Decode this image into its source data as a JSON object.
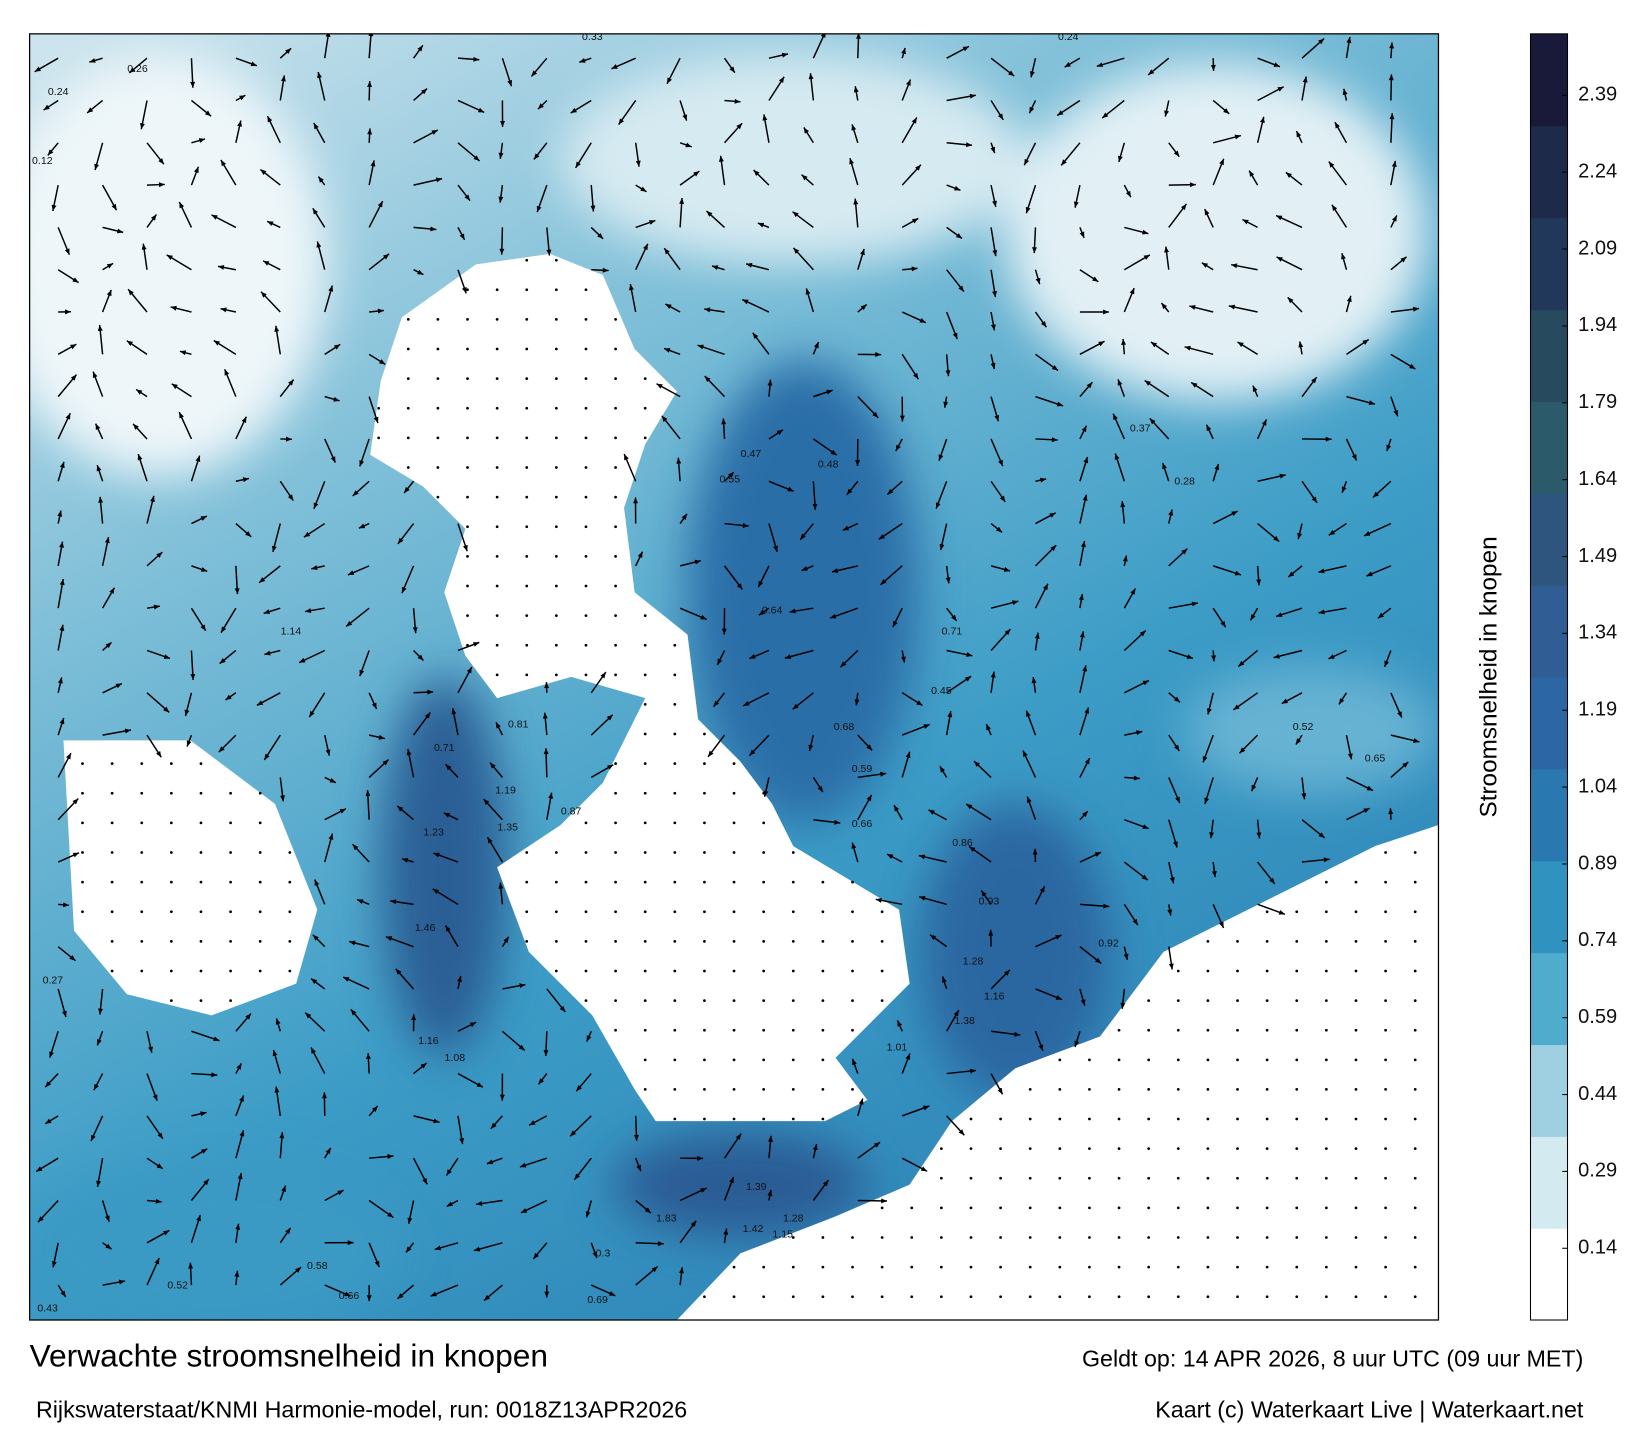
{
  "map": {
    "title": "Verwachte stroomsnelheid in knopen",
    "subtitle": "Rijkswaterstaat/KNMI Harmonie-model, run: 0018Z13APR2026",
    "valid_time": "Geldt op: 14 APR 2026, 8 uur UTC (09 uur MET)",
    "credit": "Kaart (c) Waterkaart Live | Waterkaart.net",
    "colorbar": {
      "label": "Stroomsnelheid in knopen",
      "lim": [
        0,
        2.51
      ],
      "ticks": [
        0.14,
        0.29,
        0.44,
        0.59,
        0.74,
        0.89,
        1.04,
        1.19,
        1.34,
        1.49,
        1.64,
        1.79,
        1.94,
        2.09,
        2.24,
        2.39
      ],
      "colors": [
        "#ffffff",
        "#d4eaf1",
        "#9ed0e2",
        "#4faccd",
        "#2f92bf",
        "#2a78b0",
        "#2c67a3",
        "#2f5d94",
        "#2e557e",
        "#2b5a6a",
        "#274a5e",
        "#22385a",
        "#1d2a4a",
        "#19193a"
      ]
    },
    "labels": [
      1.14,
      1.23,
      1.46,
      1.08,
      1.16,
      1.35,
      1.19,
      0.87,
      0.71,
      0.81,
      1.83,
      1.39,
      1.28,
      1.42,
      1.15,
      1.01,
      1.38,
      1.28,
      1.16,
      0.92,
      0.86,
      0.93,
      0.66,
      0.59,
      0.71,
      0.68,
      0.64,
      0.55,
      0.47,
      0.45,
      0.52,
      0.65,
      0.48,
      0.37,
      0.28,
      0.33,
      0.24,
      0.26,
      0.24,
      0.12,
      0.3,
      0.52,
      0.43,
      0.66,
      0.58,
      0.69,
      0.27
    ]
  }
}
